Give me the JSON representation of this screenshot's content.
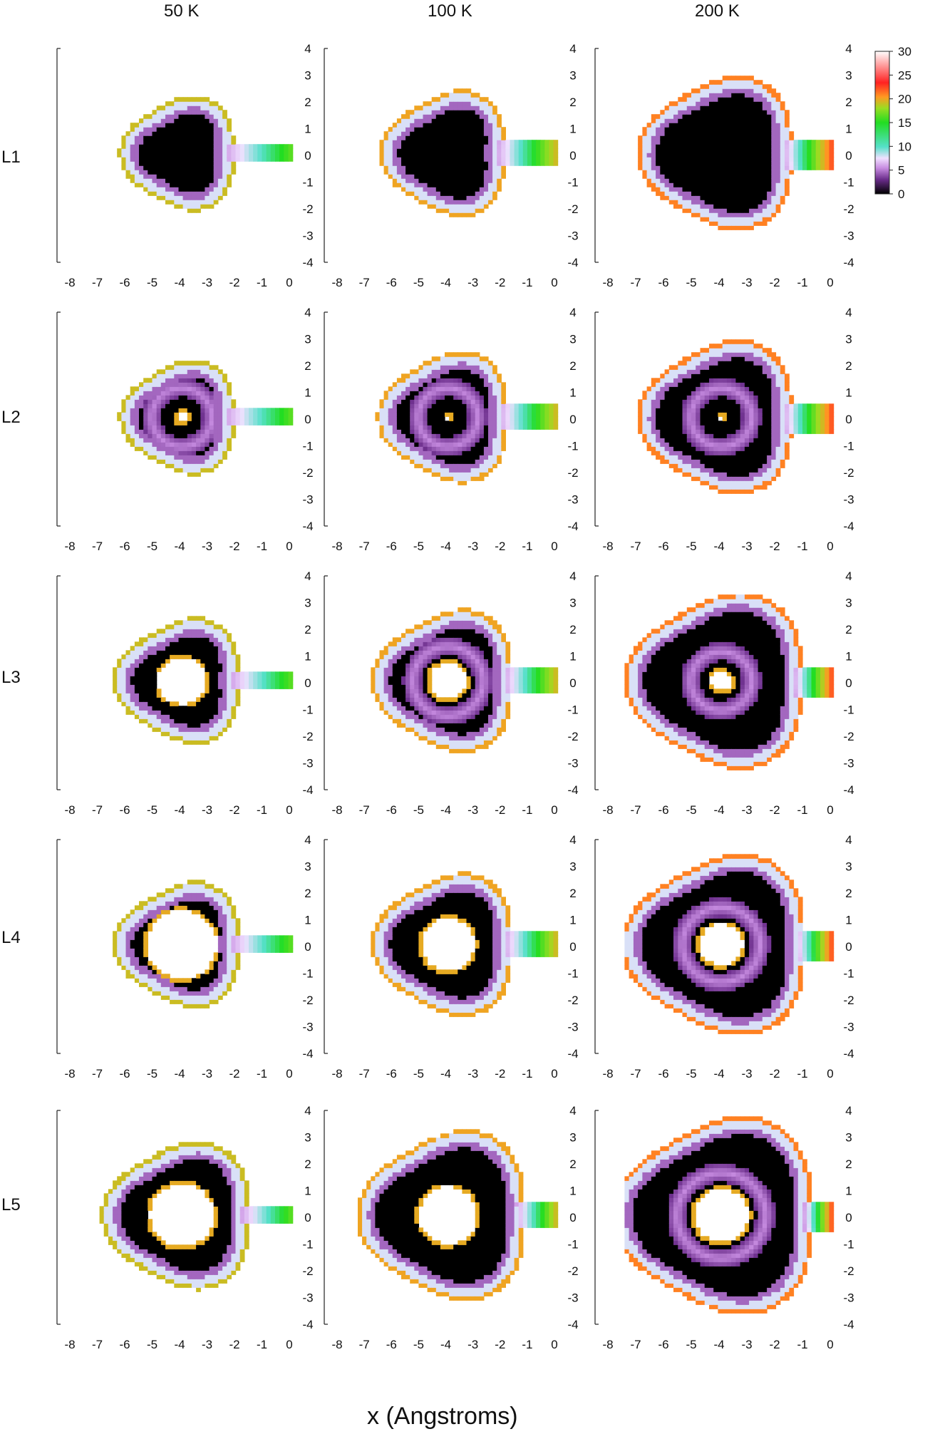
{
  "figure": {
    "column_titles": [
      "50 K",
      "100 K",
      "200 K"
    ],
    "row_labels": [
      "L1",
      "L2",
      "L3",
      "L4",
      "L5"
    ],
    "xlabel": "x (Angstroms)"
  },
  "colors": {
    "ramp": [
      "#000000",
      "#6a2c8a",
      "#c68be0",
      "#f0e0ff",
      "#55e0c8",
      "#22dd22",
      "#99dd22",
      "#ff9922",
      "#ff2222",
      "#ffffff"
    ]
  },
  "chart_data": {
    "type": "heatmap",
    "xlabel": "x (Angstroms)",
    "xlim": [
      -8,
      0
    ],
    "ylim": [
      -4,
      4
    ],
    "x_ticks": [
      "-8",
      "-7",
      "-6",
      "-5",
      "-4",
      "-3",
      "-2",
      "-1",
      "0"
    ],
    "y_ticks": [
      "4",
      "3",
      "2",
      "1",
      "0",
      "-1",
      "-2",
      "-3",
      "-4"
    ],
    "colorbar": {
      "range": [
        0,
        30
      ],
      "ticks": [
        "30",
        "25",
        "20",
        "15",
        "10",
        "5",
        "0"
      ]
    },
    "panels": [
      {
        "row": "L1",
        "temperature": "50 K",
        "ring_outer_radius": 2.1,
        "inner_hole_radius": 0.0,
        "inner_ring": false,
        "tail_strength": 0.6
      },
      {
        "row": "L1",
        "temperature": "100 K",
        "ring_outer_radius": 2.3,
        "inner_hole_radius": 0.0,
        "inner_ring": false,
        "tail_strength": 0.8
      },
      {
        "row": "L1",
        "temperature": "200 K",
        "ring_outer_radius": 2.8,
        "inner_hole_radius": 0.0,
        "inner_ring": false,
        "tail_strength": 1.0
      },
      {
        "row": "L2",
        "temperature": "50 K",
        "ring_outer_radius": 2.1,
        "inner_hole_radius": 0.3,
        "inner_ring": true,
        "tail_strength": 0.6
      },
      {
        "row": "L2",
        "temperature": "100 K",
        "ring_outer_radius": 2.4,
        "inner_hole_radius": 0.2,
        "inner_ring": true,
        "tail_strength": 0.8
      },
      {
        "row": "L2",
        "temperature": "200 K",
        "ring_outer_radius": 2.8,
        "inner_hole_radius": 0.2,
        "inner_ring": true,
        "tail_strength": 1.0
      },
      {
        "row": "L3",
        "temperature": "50 K",
        "ring_outer_radius": 2.3,
        "inner_hole_radius": 1.0,
        "inner_ring": false,
        "tail_strength": 0.6
      },
      {
        "row": "L3",
        "temperature": "100 K",
        "ring_outer_radius": 2.6,
        "inner_hole_radius": 0.8,
        "inner_ring": true,
        "tail_strength": 0.8
      },
      {
        "row": "L3",
        "temperature": "200 K",
        "ring_outer_radius": 3.2,
        "inner_hole_radius": 0.5,
        "inner_ring": true,
        "tail_strength": 1.0
      },
      {
        "row": "L4",
        "temperature": "50 K",
        "ring_outer_radius": 2.3,
        "inner_hole_radius": 1.4,
        "inner_ring": false,
        "tail_strength": 0.6
      },
      {
        "row": "L4",
        "temperature": "100 K",
        "ring_outer_radius": 2.6,
        "inner_hole_radius": 1.1,
        "inner_ring": false,
        "tail_strength": 0.8
      },
      {
        "row": "L4",
        "temperature": "200 K",
        "ring_outer_radius": 3.3,
        "inner_hole_radius": 0.9,
        "inner_ring": true,
        "tail_strength": 1.0
      },
      {
        "row": "L5",
        "temperature": "50 K",
        "ring_outer_radius": 2.7,
        "inner_hole_radius": 1.3,
        "inner_ring": false,
        "tail_strength": 0.6
      },
      {
        "row": "L5",
        "temperature": "100 K",
        "ring_outer_radius": 3.1,
        "inner_hole_radius": 1.2,
        "inner_ring": false,
        "tail_strength": 0.8
      },
      {
        "row": "L5",
        "temperature": "200 K",
        "ring_outer_radius": 3.6,
        "inner_hole_radius": 1.1,
        "inner_ring": true,
        "tail_strength": 1.0
      }
    ]
  }
}
